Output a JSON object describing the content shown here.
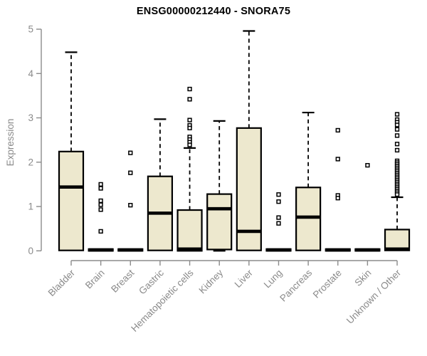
{
  "chart_data": {
    "type": "boxplot",
    "title": "ENSG00000212440 - SNORA75",
    "ylabel": "Expression",
    "xlabel": "",
    "ylim": [
      0,
      5
    ],
    "yticks": [
      0,
      1,
      2,
      3,
      4,
      5
    ],
    "grid": false,
    "legend": "none",
    "colors": {
      "box_fill": "#EDE8CE",
      "box_border": "#000000",
      "axis": "#8b8b8b",
      "tick_label": "#8a8a8a",
      "title": "#000000"
    },
    "categories": [
      {
        "label": "Bladder",
        "q1": 0.01,
        "median": 1.44,
        "q3": 2.24,
        "whisker_low": 0,
        "whisker_high": 4.48,
        "outliers": []
      },
      {
        "label": "Brain",
        "q1": 0,
        "median": 0.02,
        "q3": 0.04,
        "whisker_low": 0,
        "whisker_high": 0.04,
        "outliers": [
          1.5,
          1.41,
          1.13,
          1.04,
          0.93,
          0.44
        ]
      },
      {
        "label": "Breast",
        "q1": 0,
        "median": 0.02,
        "q3": 0.04,
        "whisker_low": 0,
        "whisker_high": 0.04,
        "outliers": [
          2.21,
          1.76,
          1.03
        ]
      },
      {
        "label": "Gastric",
        "q1": 0.01,
        "median": 0.85,
        "q3": 1.68,
        "whisker_low": 0,
        "whisker_high": 2.97,
        "outliers": []
      },
      {
        "label": "Hematopoietic cells",
        "q1": 0,
        "median": 0.04,
        "q3": 0.92,
        "whisker_low": 0,
        "whisker_high": 2.32,
        "outliers": [
          3.65,
          3.42,
          2.95,
          2.83,
          2.77,
          2.57,
          2.51,
          2.45,
          2.39
        ]
      },
      {
        "label": "Kidney",
        "q1": 0.03,
        "median": 0.95,
        "q3": 1.28,
        "whisker_low": 0,
        "whisker_high": 2.93,
        "outliers": []
      },
      {
        "label": "Liver",
        "q1": 0.01,
        "median": 0.44,
        "q3": 2.77,
        "whisker_low": 0,
        "whisker_high": 4.96,
        "outliers": []
      },
      {
        "label": "Lung",
        "q1": 0,
        "median": 0.02,
        "q3": 0.04,
        "whisker_low": 0,
        "whisker_high": 0.04,
        "outliers": [
          1.27,
          1.11,
          0.75,
          0.62
        ]
      },
      {
        "label": "Pancreas",
        "q1": 0.01,
        "median": 0.76,
        "q3": 1.43,
        "whisker_low": 0,
        "whisker_high": 3.12,
        "outliers": []
      },
      {
        "label": "Prostate",
        "q1": 0,
        "median": 0.02,
        "q3": 0.04,
        "whisker_low": 0,
        "whisker_high": 0.04,
        "outliers": [
          2.72,
          2.07,
          1.25,
          1.19
        ]
      },
      {
        "label": "Skin",
        "q1": 0,
        "median": 0.02,
        "q3": 0.04,
        "whisker_low": 0,
        "whisker_high": 0.04,
        "outliers": [
          1.93
        ]
      },
      {
        "label": "Unknown / Other",
        "q1": 0.01,
        "median": 0.04,
        "q3": 0.48,
        "whisker_low": 0,
        "whisker_high": 1.21,
        "outliers": [
          3.08,
          2.96,
          2.9,
          2.84,
          2.74,
          2.6,
          2.41,
          2.27,
          2.03,
          1.99,
          1.95,
          1.91,
          1.87,
          1.83,
          1.79,
          1.75,
          1.71,
          1.67,
          1.63,
          1.59,
          1.55,
          1.51,
          1.47,
          1.43,
          1.39,
          1.35,
          1.31,
          1.27
        ]
      }
    ]
  }
}
